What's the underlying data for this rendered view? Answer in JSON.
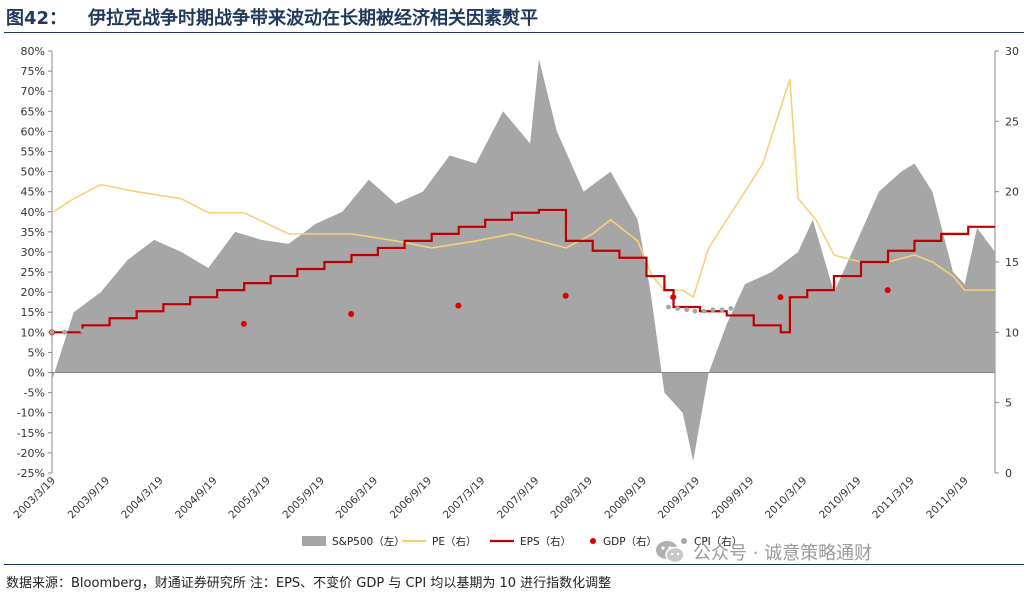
{
  "header": {
    "figure_number": "图42：",
    "title": "伊拉克战争时期战争带来波动在长期被经济相关因素熨平"
  },
  "footer": {
    "source": "数据来源：Bloomberg，财通证券研究所 注：EPS、不变价 GDP 与 CPI 均以基期为 10 进行指数化调整",
    "watermark": "公众号 · 诚意策略通财"
  },
  "colors": {
    "sp500": "#a6a6a6",
    "pe": "#f5d27a",
    "eps": "#c00000",
    "gdp": "#e00000",
    "cpi": "#a6a6a6",
    "title": "#1f3a5a"
  },
  "chart_data": {
    "type": "area",
    "x_tick_labels": [
      "2003/3/19",
      "2003/9/19",
      "2004/3/19",
      "2004/9/19",
      "2005/3/19",
      "2005/9/19",
      "2006/3/19",
      "2006/9/19",
      "2007/3/19",
      "2007/9/19",
      "2008/3/19",
      "2008/9/19",
      "2009/3/19",
      "2009/9/19",
      "2010/3/19",
      "2010/9/19",
      "2011/3/19",
      "2011/9/19"
    ],
    "x_range": [
      "2003-03-19",
      "2011-12-31"
    ],
    "y_left": {
      "range": [
        -25,
        80
      ],
      "step": 5,
      "unit": "%",
      "tick_labels": [
        "80%",
        "75%",
        "70%",
        "65%",
        "60%",
        "55%",
        "50%",
        "45%",
        "40%",
        "35%",
        "30%",
        "25%",
        "20%",
        "15%",
        "10%",
        "5%",
        "0%",
        "-5%",
        "-10%",
        "-15%",
        "-20%",
        "-25%"
      ]
    },
    "y_right": {
      "range": [
        0,
        30
      ],
      "step": 5,
      "tick_labels": [
        "30",
        "25",
        "20",
        "15",
        "10",
        "5",
        "0"
      ]
    },
    "legend_position": "bottom",
    "series": [
      {
        "name": "S&P500（左）",
        "axis": "left",
        "type": "area",
        "x": [
          "2003-03-19",
          "2003-06-01",
          "2003-09-01",
          "2003-12-01",
          "2004-03-01",
          "2004-06-01",
          "2004-09-01",
          "2004-12-01",
          "2005-03-01",
          "2005-06-01",
          "2005-09-01",
          "2005-12-01",
          "2006-03-01",
          "2006-06-01",
          "2006-09-01",
          "2006-12-01",
          "2007-03-01",
          "2007-06-01",
          "2007-09-01",
          "2007-10-01",
          "2007-12-01",
          "2008-03-01",
          "2008-06-01",
          "2008-09-01",
          "2008-10-15",
          "2008-12-01",
          "2009-02-01",
          "2009-03-09",
          "2009-05-01",
          "2009-07-01",
          "2009-09-01",
          "2009-12-01",
          "2010-03-01",
          "2010-04-20",
          "2010-07-01",
          "2010-09-01",
          "2010-12-01",
          "2011-02-15",
          "2011-04-01",
          "2011-06-01",
          "2011-08-10",
          "2011-09-19",
          "2011-10-31",
          "2011-12-31"
        ],
        "values": [
          -2,
          15,
          20,
          28,
          33,
          30,
          26,
          35,
          33,
          32,
          37,
          40,
          48,
          42,
          45,
          54,
          52,
          65,
          57,
          78,
          60,
          45,
          50,
          38,
          20,
          -5,
          -10,
          -22,
          0,
          12,
          22,
          25,
          30,
          38,
          20,
          30,
          45,
          50,
          52,
          45,
          25,
          22,
          36,
          30
        ]
      },
      {
        "name": "PE（右）",
        "axis": "right",
        "type": "line",
        "x": [
          "2003-03-19",
          "2003-06-01",
          "2003-09-01",
          "2004-01-01",
          "2004-06-01",
          "2004-09-01",
          "2005-01-01",
          "2005-06-01",
          "2006-01-01",
          "2006-06-01",
          "2006-10-01",
          "2007-03-01",
          "2007-07-01",
          "2007-10-01",
          "2008-01-01",
          "2008-04-01",
          "2008-06-01",
          "2008-09-01",
          "2008-10-20",
          "2008-12-01",
          "2009-02-01",
          "2009-03-09",
          "2009-05-01",
          "2009-07-01",
          "2009-09-01",
          "2009-11-01",
          "2010-01-01",
          "2010-02-01",
          "2010-03-01",
          "2010-05-01",
          "2010-07-01",
          "2010-10-01",
          "2011-01-01",
          "2011-04-01",
          "2011-06-01",
          "2011-08-10",
          "2011-09-19",
          "2011-12-31"
        ],
        "values": [
          18.5,
          19.5,
          20.5,
          20,
          19.5,
          18.5,
          18.5,
          17,
          17,
          16.5,
          16,
          16.5,
          17,
          16.5,
          16,
          17,
          18,
          16.5,
          14,
          13,
          13,
          12.5,
          16,
          18,
          20,
          22,
          26,
          28,
          19.5,
          18,
          15.5,
          15,
          15,
          15.5,
          15,
          14,
          13,
          13
        ]
      },
      {
        "name": "EPS（右）",
        "axis": "right",
        "type": "step",
        "x": [
          "2003-03-19",
          "2003-07-01",
          "2003-10-01",
          "2004-01-01",
          "2004-04-01",
          "2004-07-01",
          "2004-10-01",
          "2005-01-01",
          "2005-04-01",
          "2005-07-01",
          "2005-10-01",
          "2006-01-01",
          "2006-04-01",
          "2006-07-01",
          "2006-10-01",
          "2007-01-01",
          "2007-04-01",
          "2007-07-01",
          "2007-10-01",
          "2008-01-01",
          "2008-04-01",
          "2008-07-01",
          "2008-10-01",
          "2008-12-01",
          "2009-01-01",
          "2009-04-01",
          "2009-07-01",
          "2009-10-01",
          "2010-01-01",
          "2010-02-01",
          "2010-04-01",
          "2010-07-01",
          "2010-10-01",
          "2011-01-01",
          "2011-04-01",
          "2011-07-01",
          "2011-10-01",
          "2011-12-31"
        ],
        "values": [
          10,
          10.5,
          11,
          11.5,
          12,
          12.5,
          13,
          13.5,
          14,
          14.5,
          15,
          15.5,
          16,
          16.5,
          17,
          17.5,
          18,
          18.5,
          18.7,
          16.5,
          15.8,
          15.3,
          14,
          13,
          11.8,
          11.5,
          11.2,
          10.5,
          10,
          12.5,
          13,
          14,
          15,
          15.8,
          16.5,
          17,
          17.5,
          17.5
        ]
      },
      {
        "name": "GDP（右）",
        "axis": "right",
        "type": "points",
        "x": [
          "2003-03-19",
          "2004-12-31",
          "2005-12-31",
          "2006-12-31",
          "2007-12-31",
          "2008-12-31",
          "2009-12-31",
          "2010-12-31"
        ],
        "values": [
          10,
          10.6,
          11.3,
          11.9,
          12.6,
          12.5,
          12.5,
          13
        ]
      },
      {
        "name": "CPI（右）",
        "axis": "right",
        "type": "points",
        "x": [
          "2003-03-19",
          "2003-05-01",
          "2003-07-01",
          "2008-12-15",
          "2009-01-15",
          "2009-02-15",
          "2009-03-15",
          "2009-04-15",
          "2009-05-15",
          "2009-06-15",
          "2009-07-15",
          "2009-08-15",
          "2009-09-15",
          "2009-10-15",
          "2009-11-15",
          "2009-12-15",
          "2010-01-15"
        ],
        "values": [
          10,
          10,
          10.1,
          11.8,
          11.7,
          11.6,
          11.5,
          11.5,
          11.6,
          11.6,
          11.7,
          11.7,
          11.7,
          11.8,
          11.8,
          11.8,
          11.8
        ]
      }
    ]
  }
}
